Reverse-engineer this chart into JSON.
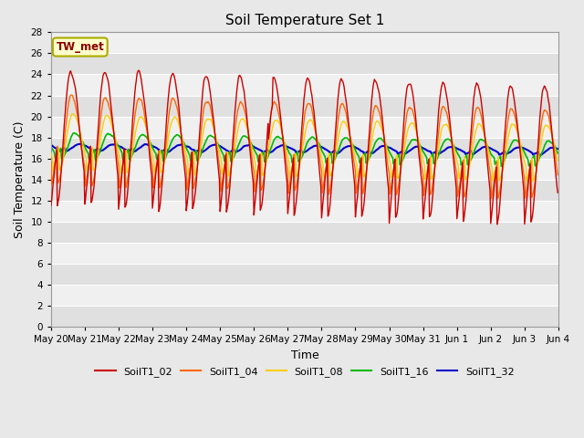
{
  "title": "Soil Temperature Set 1",
  "xlabel": "Time",
  "ylabel": "Soil Temperature (C)",
  "ylim": [
    0,
    28
  ],
  "yticks": [
    0,
    2,
    4,
    6,
    8,
    10,
    12,
    14,
    16,
    18,
    20,
    22,
    24,
    26,
    28
  ],
  "n_days": 15,
  "sensor_colors": [
    "#cc0000",
    "#ff6600",
    "#ffcc00",
    "#00bb00",
    "#0000cc"
  ],
  "sensor_labels": [
    "SoilT1_02",
    "SoilT1_04",
    "SoilT1_08",
    "SoilT1_16",
    "SoilT1_32"
  ],
  "xtick_labels": [
    "May 20",
    "May 21",
    "May 22",
    "May 23",
    "May 24",
    "May 25",
    "May 26",
    "May 27",
    "May 28",
    "May 29",
    "May 30",
    "May 31",
    "Jun 1",
    "Jun 2",
    "Jun 3",
    "Jun 4"
  ],
  "annotation_text": "TW_met",
  "annotation_color": "#8b0000",
  "annotation_bg": "#ffffcc",
  "annotation_border": "#aaaa00",
  "bg_color": "#e8e8e8",
  "plot_bg_light": "#f0f0f0",
  "plot_bg_dark": "#e0e0e0",
  "grid_color": "#ffffff",
  "amplitudes_day": [
    7.5,
    5.0,
    3.2,
    1.4,
    0.4
  ],
  "amplitudes_night": [
    5.5,
    3.5,
    2.2,
    1.0,
    0.3
  ],
  "mean": 17.0,
  "peak_hour": 14.0,
  "trough_hour": 4.0
}
